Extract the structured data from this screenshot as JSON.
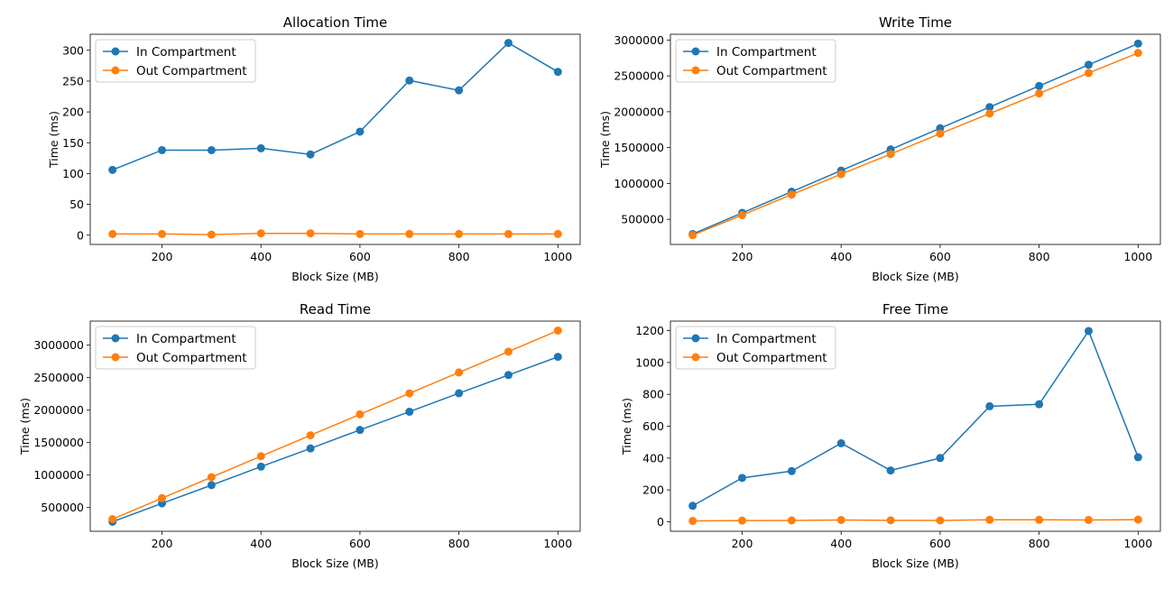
{
  "colors": {
    "series_0": "#1f77b4",
    "series_1": "#ff7f0e",
    "axes": "#000000",
    "legend_border": "#cccccc"
  },
  "chart_data": [
    {
      "type": "line",
      "title": "Allocation Time",
      "xlabel": "Block Size (MB)",
      "ylabel": "Time (ms)",
      "x": [
        100,
        200,
        300,
        400,
        500,
        600,
        700,
        800,
        900,
        1000
      ],
      "xlim": [
        55,
        1045
      ],
      "ylim": [
        -15,
        326
      ],
      "xticks": [
        200,
        400,
        600,
        800,
        1000
      ],
      "yticks": [
        0,
        50,
        100,
        150,
        200,
        250,
        300
      ],
      "legend": "top-left",
      "grid": false,
      "series": [
        {
          "name": "In Compartment",
          "values": [
            106,
            138,
            138,
            141,
            131,
            168,
            251,
            235,
            312,
            265
          ]
        },
        {
          "name": "Out Compartment",
          "values": [
            2,
            2,
            1,
            3,
            3,
            2,
            2,
            2,
            2,
            2
          ]
        }
      ]
    },
    {
      "type": "line",
      "title": "Write Time",
      "xlabel": "Block Size (MB)",
      "ylabel": "Time (ms)",
      "x": [
        100,
        200,
        300,
        400,
        500,
        600,
        700,
        800,
        900,
        1000
      ],
      "xlim": [
        55,
        1045
      ],
      "ylim": [
        150000,
        3080000
      ],
      "xticks": [
        200,
        400,
        600,
        800,
        1000
      ],
      "yticks": [
        500000,
        1000000,
        1500000,
        2000000,
        2500000,
        3000000
      ],
      "legend": "top-left",
      "grid": false,
      "series": [
        {
          "name": "In Compartment",
          "values": [
            295000,
            590000,
            885000,
            1180000,
            1475000,
            1770000,
            2065000,
            2360000,
            2655000,
            2950000
          ]
        },
        {
          "name": "Out Compartment",
          "values": [
            280000,
            560000,
            845000,
            1130000,
            1410000,
            1695000,
            1975000,
            2255000,
            2540000,
            2820000
          ]
        }
      ]
    },
    {
      "type": "line",
      "title": "Read Time",
      "xlabel": "Block Size (MB)",
      "ylabel": "Time (ms)",
      "x": [
        100,
        200,
        300,
        400,
        500,
        600,
        700,
        800,
        900,
        1000
      ],
      "xlim": [
        55,
        1045
      ],
      "ylim": [
        135000,
        3370000
      ],
      "xticks": [
        200,
        400,
        600,
        800,
        1000
      ],
      "yticks": [
        500000,
        1000000,
        1500000,
        2000000,
        2500000,
        3000000
      ],
      "legend": "top-left",
      "grid": false,
      "series": [
        {
          "name": "In Compartment",
          "values": [
            282000,
            565000,
            845000,
            1130000,
            1410000,
            1695000,
            1975000,
            2260000,
            2540000,
            2820000
          ]
        },
        {
          "name": "Out Compartment",
          "values": [
            322000,
            645000,
            968000,
            1290000,
            1612000,
            1935000,
            2258000,
            2580000,
            2900000,
            3225000
          ]
        }
      ]
    },
    {
      "type": "line",
      "title": "Free Time",
      "xlabel": "Block Size (MB)",
      "ylabel": "Time (ms)",
      "x": [
        100,
        200,
        300,
        400,
        500,
        600,
        700,
        800,
        900,
        1000
      ],
      "xlim": [
        55,
        1045
      ],
      "ylim": [
        -60,
        1260
      ],
      "xticks": [
        200,
        400,
        600,
        800,
        1000
      ],
      "yticks": [
        0,
        200,
        400,
        600,
        800,
        1000,
        1200
      ],
      "legend": "top-left",
      "grid": false,
      "series": [
        {
          "name": "In Compartment",
          "values": [
            100,
            275,
            318,
            493,
            322,
            400,
            725,
            738,
            1198,
            405
          ]
        },
        {
          "name": "Out Compartment",
          "values": [
            5,
            7,
            8,
            11,
            9,
            8,
            12,
            12,
            11,
            13
          ]
        }
      ]
    }
  ]
}
